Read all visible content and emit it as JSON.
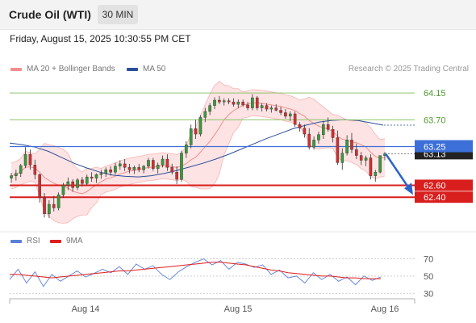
{
  "header": {
    "title": "Crude Oil (WTI)",
    "timeframe": "30 MIN"
  },
  "datetime": "Friday, August 15, 2025 10:30:55 PM CET",
  "legend": {
    "bollinger_label": "MA 20 + Bollinger Bands",
    "bollinger_color": "#f08e8e",
    "ma50_label": "MA 50",
    "ma50_color": "#2c4f9a",
    "credit": "Research © 2025 Trading Central"
  },
  "rsi_legend": {
    "rsi_label": "RSI",
    "rsi_color": "#5b7fd6",
    "ma_label": "9MA",
    "ma_color": "#e11d1d"
  },
  "chart_data": {
    "type": "candlestick",
    "x_ticks": [
      "Aug 14",
      "Aug 15",
      "Aug 16"
    ],
    "ylim": [
      61.86,
      64.41
    ],
    "levels": [
      {
        "value": 64.15,
        "label": "64.15",
        "kind": "resistance",
        "color": "#8dc56b"
      },
      {
        "value": 63.7,
        "label": "63.70",
        "kind": "resistance",
        "color": "#8dc56b"
      },
      {
        "value": 63.25,
        "label": "63.25",
        "kind": "pivot",
        "color": "#3c6fd8"
      },
      {
        "value": 62.6,
        "label": "62.60",
        "kind": "support",
        "color": "#d91e1e"
      },
      {
        "value": 62.4,
        "label": "62.40",
        "kind": "support",
        "color": "#d91e1e"
      }
    ],
    "last_price": {
      "value": 63.13,
      "label": "63.13"
    },
    "forecast_arrow": {
      "from": 63.13,
      "to": 62.48
    },
    "ma50": [
      63.31,
      63.28,
      63.24,
      63.17,
      63.07,
      62.97,
      62.89,
      62.82,
      62.77,
      62.75,
      62.74,
      62.76,
      62.8,
      62.85,
      62.91,
      62.97,
      63.04,
      63.12,
      63.21,
      63.3,
      63.39,
      63.47,
      63.55,
      63.61,
      63.66,
      63.69,
      63.7,
      63.69,
      63.65,
      63.61
    ],
    "rsi": {
      "ticks": [
        30,
        50,
        70
      ],
      "ylim": [
        20,
        78
      ],
      "rsi": [
        46,
        58,
        42,
        55,
        38,
        52,
        44,
        50,
        56,
        49,
        53,
        58,
        54,
        61,
        52,
        64,
        58,
        62,
        52,
        46,
        55,
        61,
        66,
        70,
        63,
        68,
        58,
        66,
        64,
        60,
        63,
        52,
        57,
        48,
        50,
        42,
        54,
        46,
        52,
        44,
        49,
        40,
        50,
        45,
        49
      ],
      "ma": [
        52,
        52,
        51,
        50,
        49,
        48,
        49,
        50,
        51,
        52,
        53,
        54,
        55,
        56,
        56,
        57,
        58,
        59,
        60,
        61,
        62,
        63,
        64,
        65,
        66,
        66,
        65,
        64,
        63,
        61,
        59,
        57,
        56,
        54,
        53,
        52,
        51,
        50,
        50,
        49,
        48,
        48,
        47,
        47,
        47
      ]
    },
    "candles": [
      [
        62.72,
        62.81,
        62.64,
        62.76
      ],
      [
        62.76,
        62.86,
        62.68,
        62.8
      ],
      [
        62.8,
        62.96,
        62.74,
        62.93
      ],
      [
        62.93,
        63.24,
        62.89,
        63.12
      ],
      [
        63.12,
        63.2,
        62.86,
        62.94
      ],
      [
        62.94,
        63.03,
        62.7,
        62.78
      ],
      [
        62.78,
        62.8,
        62.31,
        62.4
      ],
      [
        62.4,
        62.47,
        62.06,
        62.12
      ],
      [
        62.12,
        62.35,
        62.05,
        62.28
      ],
      [
        62.28,
        62.42,
        62.16,
        62.22
      ],
      [
        62.22,
        62.48,
        62.18,
        62.44
      ],
      [
        62.44,
        62.64,
        62.39,
        62.6
      ],
      [
        62.6,
        62.73,
        62.52,
        62.66
      ],
      [
        62.66,
        62.7,
        62.49,
        62.56
      ],
      [
        62.56,
        62.72,
        62.52,
        62.69
      ],
      [
        62.69,
        62.74,
        62.58,
        62.63
      ],
      [
        62.63,
        62.78,
        62.6,
        62.74
      ],
      [
        62.74,
        62.82,
        62.66,
        62.72
      ],
      [
        62.72,
        62.8,
        62.64,
        62.78
      ],
      [
        62.78,
        62.86,
        62.71,
        62.8
      ],
      [
        62.8,
        62.9,
        62.74,
        62.86
      ],
      [
        62.86,
        62.92,
        62.76,
        62.82
      ],
      [
        62.82,
        62.98,
        62.78,
        62.92
      ],
      [
        62.92,
        63.02,
        62.86,
        62.96
      ],
      [
        62.96,
        63.04,
        62.84,
        62.9
      ],
      [
        62.9,
        62.96,
        62.8,
        62.86
      ],
      [
        62.86,
        62.93,
        62.79,
        62.9
      ],
      [
        62.9,
        62.96,
        62.82,
        62.86
      ],
      [
        62.86,
        62.94,
        62.8,
        62.92
      ],
      [
        62.92,
        63.06,
        62.88,
        63.02
      ],
      [
        63.02,
        63.06,
        62.84,
        62.88
      ],
      [
        62.88,
        62.98,
        62.8,
        62.94
      ],
      [
        62.94,
        63.1,
        62.9,
        63.04
      ],
      [
        63.04,
        63.12,
        62.84,
        62.9
      ],
      [
        62.9,
        62.96,
        62.78,
        62.82
      ],
      [
        62.82,
        62.92,
        62.62,
        62.7
      ],
      [
        62.7,
        63.18,
        62.66,
        63.14
      ],
      [
        63.14,
        63.34,
        63.06,
        63.28
      ],
      [
        63.28,
        63.62,
        63.22,
        63.55
      ],
      [
        63.55,
        63.7,
        63.38,
        63.46
      ],
      [
        63.46,
        63.78,
        63.42,
        63.74
      ],
      [
        63.74,
        63.9,
        63.66,
        63.84
      ],
      [
        63.84,
        63.98,
        63.78,
        63.94
      ],
      [
        63.94,
        64.08,
        63.88,
        64.03
      ],
      [
        64.03,
        64.1,
        63.96,
        64.0
      ],
      [
        64.0,
        64.06,
        63.94,
        64.02
      ],
      [
        64.02,
        64.06,
        63.96,
        64.0
      ],
      [
        64.0,
        64.06,
        63.92,
        63.96
      ],
      [
        63.96,
        64.04,
        63.9,
        64.0
      ],
      [
        64.0,
        64.04,
        63.92,
        63.95
      ],
      [
        63.95,
        64.0,
        63.86,
        63.9
      ],
      [
        63.9,
        64.13,
        63.86,
        64.07
      ],
      [
        64.07,
        64.1,
        63.86,
        63.9
      ],
      [
        63.9,
        63.98,
        63.84,
        63.94
      ],
      [
        63.94,
        63.98,
        63.84,
        63.88
      ],
      [
        63.88,
        63.94,
        63.82,
        63.9
      ],
      [
        63.9,
        63.96,
        63.84,
        63.86
      ],
      [
        63.86,
        63.92,
        63.78,
        63.82
      ],
      [
        63.82,
        63.88,
        63.72,
        63.76
      ],
      [
        63.76,
        63.84,
        63.68,
        63.8
      ],
      [
        63.8,
        63.84,
        63.58,
        63.62
      ],
      [
        63.62,
        63.66,
        63.5,
        63.56
      ],
      [
        63.56,
        63.62,
        63.4,
        63.46
      ],
      [
        63.46,
        63.56,
        63.2,
        63.24
      ],
      [
        63.24,
        63.42,
        63.2,
        63.36
      ],
      [
        63.36,
        63.5,
        63.3,
        63.45
      ],
      [
        63.45,
        63.68,
        63.38,
        63.62
      ],
      [
        63.62,
        63.74,
        63.5,
        63.54
      ],
      [
        63.54,
        63.6,
        63.32,
        63.4
      ],
      [
        63.4,
        63.52,
        62.94,
        62.98
      ],
      [
        62.98,
        63.22,
        62.86,
        63.14
      ],
      [
        63.14,
        63.44,
        63.1,
        63.36
      ],
      [
        63.36,
        63.48,
        63.14,
        63.2
      ],
      [
        63.2,
        63.3,
        63.04,
        63.1
      ],
      [
        63.1,
        63.16,
        62.94,
        63.02
      ],
      [
        63.02,
        63.1,
        62.92,
        63.06
      ],
      [
        63.06,
        63.12,
        62.7,
        62.76
      ],
      [
        62.76,
        62.86,
        62.66,
        62.82
      ],
      [
        62.82,
        63.08,
        62.8,
        63.1
      ],
      [
        63.1,
        63.16,
        63.02,
        63.13
      ]
    ]
  }
}
